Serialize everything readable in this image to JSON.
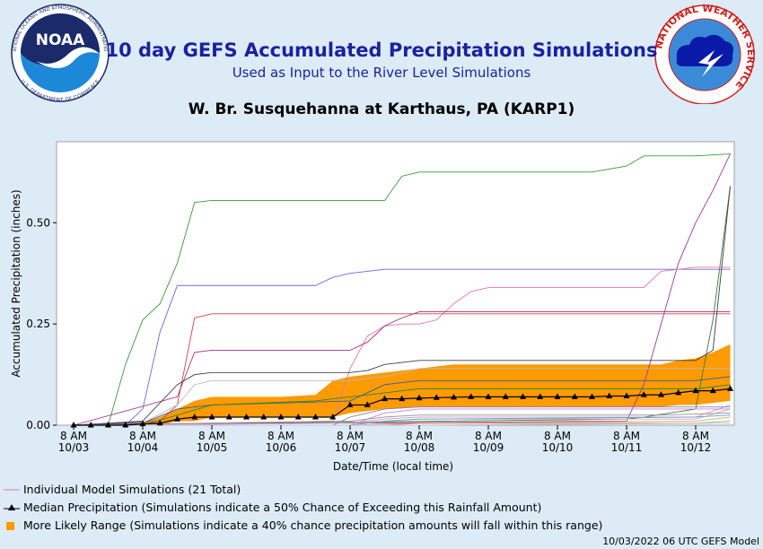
{
  "header": {
    "title": "10 day GEFS Accumulated Precipitation Simulations",
    "subtitle": "Used as Input to the River Level Simulations",
    "site": "W. Br. Susquehanna at Karthaus, PA (KARP1)",
    "noaa_logo_text": "NOAA",
    "noaa_ring_text": "NATIONAL OCEANIC AND ATMOSPHERIC ADMINISTRATION",
    "noaa_ring_bottom": "U.S. DEPARTMENT OF COMMERCE",
    "nws_ring_text": "NATIONAL WEATHER SERVICE"
  },
  "chart_data": {
    "type": "line",
    "ylabel": "Accumulated Precipitation (inches)",
    "xlabel": "Date/Time (local time)",
    "ylim": [
      0,
      0.7
    ],
    "yticks": [
      0.0,
      0.25,
      0.5
    ],
    "ytick_labels": [
      "0.00",
      "0.25",
      "0.50"
    ],
    "xlim": [
      0,
      9.8
    ],
    "xticks": [
      {
        "x": 0,
        "hour": "8 AM",
        "date": "10/03"
      },
      {
        "x": 1,
        "hour": "8 AM",
        "date": "10/04"
      },
      {
        "x": 2,
        "hour": "8 AM",
        "date": "10/05"
      },
      {
        "x": 3,
        "hour": "8 AM",
        "date": "10/06"
      },
      {
        "x": 4,
        "hour": "8 AM",
        "date": "10/07"
      },
      {
        "x": 5,
        "hour": "8 AM",
        "date": "10/08"
      },
      {
        "x": 6,
        "hour": "8 AM",
        "date": "10/09"
      },
      {
        "x": 7,
        "hour": "8 AM",
        "date": "10/10"
      },
      {
        "x": 8,
        "hour": "8 AM",
        "date": "10/11"
      },
      {
        "x": 9,
        "hour": "8 AM",
        "date": "10/12"
      }
    ],
    "range_band": {
      "x": [
        0.9,
        1.25,
        1.5,
        1.75,
        2.0,
        2.5,
        3.0,
        3.5,
        3.75,
        4.0,
        4.5,
        5.0,
        5.5,
        6.0,
        7.0,
        8.0,
        8.5,
        8.75,
        9.0,
        9.25,
        9.5
      ],
      "lower": [
        0.0,
        0.0,
        0.01,
        0.01,
        0.02,
        0.02,
        0.02,
        0.02,
        0.02,
        0.03,
        0.04,
        0.045,
        0.045,
        0.045,
        0.045,
        0.045,
        0.045,
        0.05,
        0.05,
        0.055,
        0.06
      ],
      "upper": [
        0.0,
        0.02,
        0.04,
        0.06,
        0.07,
        0.07,
        0.07,
        0.075,
        0.11,
        0.12,
        0.13,
        0.14,
        0.15,
        0.15,
        0.15,
        0.15,
        0.15,
        0.16,
        0.165,
        0.18,
        0.2
      ]
    },
    "median": {
      "x": [
        0,
        0.25,
        0.5,
        0.75,
        1.0,
        1.25,
        1.5,
        1.75,
        2.0,
        2.25,
        2.5,
        2.75,
        3.0,
        3.25,
        3.5,
        3.75,
        4.0,
        4.25,
        4.5,
        4.75,
        5.0,
        5.25,
        5.5,
        5.75,
        6.0,
        6.25,
        6.5,
        6.75,
        7.0,
        7.25,
        7.5,
        7.75,
        8.0,
        8.25,
        8.5,
        8.75,
        9.0,
        9.25,
        9.5
      ],
      "y": [
        0,
        0,
        0,
        0,
        0.003,
        0.005,
        0.015,
        0.02,
        0.02,
        0.02,
        0.02,
        0.02,
        0.02,
        0.02,
        0.02,
        0.02,
        0.05,
        0.05,
        0.065,
        0.065,
        0.067,
        0.068,
        0.069,
        0.07,
        0.07,
        0.07,
        0.07,
        0.07,
        0.07,
        0.07,
        0.07,
        0.072,
        0.072,
        0.075,
        0.075,
        0.08,
        0.085,
        0.085,
        0.09
      ]
    },
    "series": [
      {
        "color": "#3a9a3a",
        "x": [
          0,
          0.5,
          0.75,
          1.0,
          1.25,
          1.5,
          1.75,
          2.0,
          4.5,
          4.75,
          5.0,
          6.0,
          7.5,
          8.0,
          8.25,
          8.5,
          9.0,
          9.5
        ],
        "y": [
          0,
          0,
          0.15,
          0.26,
          0.3,
          0.4,
          0.55,
          0.555,
          0.555,
          0.615,
          0.625,
          0.625,
          0.625,
          0.64,
          0.665,
          0.665,
          0.665,
          0.67
        ]
      },
      {
        "color": "#9a3a9a",
        "x": [
          0,
          7.75,
          8.0,
          8.25,
          8.5,
          8.75,
          9.0,
          9.25,
          9.5
        ],
        "y": [
          0,
          0.01,
          0.01,
          0.1,
          0.25,
          0.4,
          0.5,
          0.58,
          0.67
        ]
      },
      {
        "color": "#3a7a3a",
        "x": [
          0,
          8.0,
          8.25,
          9.0,
          9.25,
          9.5
        ],
        "y": [
          0,
          0.015,
          0.02,
          0.04,
          0.26,
          0.59
        ]
      },
      {
        "color": "#6a6ae0",
        "x": [
          0,
          0.75,
          1.0,
          1.25,
          1.5,
          3.5,
          3.75,
          4.0,
          4.5,
          5.0,
          8.0,
          9.0,
          9.5
        ],
        "y": [
          0,
          0,
          0.04,
          0.23,
          0.345,
          0.345,
          0.365,
          0.375,
          0.385,
          0.385,
          0.385,
          0.385,
          0.385
        ]
      },
      {
        "color": "#e07a9a",
        "x": [
          0,
          3.75,
          4.0,
          4.25,
          4.5,
          4.75,
          5.0,
          5.25,
          5.5,
          5.75,
          6.0,
          8.0,
          8.25,
          8.5,
          9.0,
          9.5
        ],
        "y": [
          0,
          0.01,
          0.14,
          0.22,
          0.245,
          0.25,
          0.25,
          0.26,
          0.3,
          0.33,
          0.34,
          0.34,
          0.34,
          0.38,
          0.39,
          0.39
        ]
      },
      {
        "color": "#d84040",
        "x": [
          0,
          1.25,
          1.5,
          1.75,
          2.0,
          2.25,
          9.5
        ],
        "y": [
          0,
          0.01,
          0.05,
          0.265,
          0.275,
          0.275,
          0.275
        ]
      },
      {
        "color": "#a0308a",
        "x": [
          0,
          1.5,
          1.75,
          2.0,
          4.0,
          4.25,
          4.5,
          4.75,
          5.0,
          7.75,
          8.0,
          9.5
        ],
        "y": [
          0,
          0.07,
          0.18,
          0.185,
          0.185,
          0.205,
          0.245,
          0.265,
          0.28,
          0.28,
          0.28,
          0.28
        ]
      },
      {
        "color": "#404040",
        "x": [
          0,
          1.0,
          1.5,
          1.75,
          2.0,
          4.0,
          4.25,
          4.5,
          4.75,
          5.0,
          6.0,
          8.5,
          9.0,
          9.25,
          9.5
        ],
        "y": [
          0,
          0.01,
          0.1,
          0.125,
          0.13,
          0.13,
          0.135,
          0.15,
          0.155,
          0.16,
          0.16,
          0.16,
          0.16,
          0.185,
          0.59
        ]
      },
      {
        "color": "#b8b8b8",
        "x": [
          0,
          1.0,
          1.5,
          1.75,
          2.0,
          4.0,
          4.5,
          4.75,
          5.0,
          5.5,
          9.0,
          9.5
        ],
        "y": [
          0,
          0.005,
          0.05,
          0.1,
          0.11,
          0.11,
          0.12,
          0.13,
          0.14,
          0.14,
          0.14,
          0.14
        ]
      },
      {
        "color": "#2f5fa0",
        "x": [
          0,
          1.0,
          1.5,
          2.0,
          4.0,
          4.5,
          5.0,
          9.0,
          9.5
        ],
        "y": [
          0,
          0.005,
          0.04,
          0.05,
          0.06,
          0.1,
          0.11,
          0.11,
          0.12
        ]
      },
      {
        "color": "#2a8a2a",
        "x": [
          0,
          1.0,
          2.0,
          3.5,
          4.0,
          4.5,
          5.0,
          8.0,
          9.0,
          9.5
        ],
        "y": [
          0,
          0.0,
          0.05,
          0.06,
          0.07,
          0.08,
          0.09,
          0.09,
          0.09,
          0.1
        ]
      },
      {
        "color": "#c0a0c0",
        "x": [
          0,
          4.0,
          4.5,
          5.0,
          9.0,
          9.5
        ],
        "y": [
          0,
          0.005,
          0.015,
          0.02,
          0.02,
          0.05
        ]
      },
      {
        "color": "#e0a0c0",
        "x": [
          0,
          4.0,
          4.5,
          5.0,
          9.0,
          9.5
        ],
        "y": [
          0,
          0.005,
          0.01,
          0.015,
          0.015,
          0.04
        ]
      },
      {
        "color": "#8080c0",
        "x": [
          0,
          3.75,
          4.0,
          4.5,
          5.0,
          9.0,
          9.5
        ],
        "y": [
          0,
          0.0,
          0.02,
          0.04,
          0.045,
          0.045,
          0.045
        ]
      },
      {
        "color": "#d080d0",
        "x": [
          0,
          4.0,
          4.5,
          5.0,
          9.0,
          9.5
        ],
        "y": [
          0,
          0.0,
          0.03,
          0.04,
          0.04,
          0.04
        ]
      },
      {
        "color": "#909090",
        "x": [
          0,
          4.0,
          4.5,
          5.0,
          8.5,
          9.5
        ],
        "y": [
          0,
          0.01,
          0.02,
          0.025,
          0.025,
          0.03
        ]
      },
      {
        "color": "#60a0d0",
        "x": [
          0,
          4.0,
          4.5,
          5.0,
          9.0,
          9.5
        ],
        "y": [
          0,
          0.0,
          0.01,
          0.015,
          0.02,
          0.025
        ]
      },
      {
        "color": "#d0b050",
        "x": [
          0,
          4.0,
          5.0,
          9.0,
          9.5
        ],
        "y": [
          0,
          0.0,
          0.005,
          0.01,
          0.02
        ]
      },
      {
        "color": "#e08080",
        "x": [
          0,
          4.5,
          5.0,
          9.0,
          9.5
        ],
        "y": [
          0,
          0.0,
          0.005,
          0.005,
          0.01
        ]
      },
      {
        "color": "#a0d0a0",
        "x": [
          0,
          5.0,
          9.0,
          9.5
        ],
        "y": [
          0,
          0.0,
          0.005,
          0.01
        ]
      },
      {
        "color": "#c0c0e0",
        "x": [
          0,
          5.0,
          9.5
        ],
        "y": [
          0,
          0.0,
          0.005
        ]
      }
    ],
    "legend": [
      "Individual Model Simulations (21 Total)",
      "Median Precipitation (Simulations indicate a 50% Chance of Exceeding this Rainfall Amount)",
      "More Likely Range (Simulations indicate a 40% chance precipitation amounts will fall within this range)"
    ],
    "colors": {
      "band": "#ff9a00",
      "median": "#000000",
      "individual_legend": "#e07a9a"
    }
  },
  "footer": "10/03/2022 06 UTC GEFS Model"
}
